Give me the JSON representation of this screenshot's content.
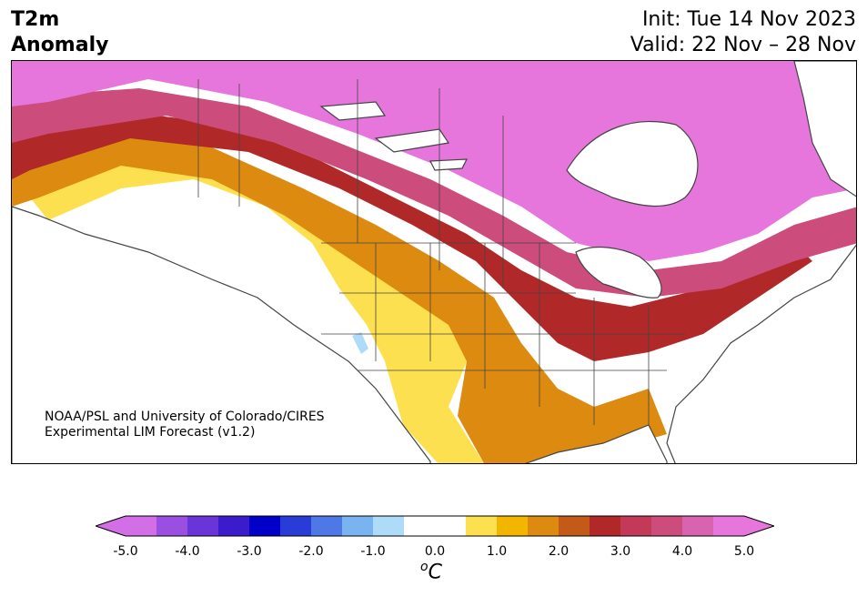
{
  "title": {
    "line1": "T2m",
    "line2": "Anomaly"
  },
  "dates": {
    "init": "Init: Tue 14 Nov 2023",
    "valid": "Valid: 22 Nov – 28 Nov"
  },
  "credit": {
    "line1": "NOAA/PSL and University of Colorado/CIRES",
    "line2": "Experimental LIM Forecast (v1.2)"
  },
  "colorbar": {
    "ticks": [
      "-5.0",
      "-4.0",
      "-3.0",
      "-2.0",
      "-1.0",
      "0.0",
      "1.0",
      "2.0",
      "3.0",
      "4.0",
      "5.0"
    ],
    "unit": "C",
    "unit_prefix": "o",
    "colors": [
      "#d26ee6",
      "#9b4fe0",
      "#6a35d8",
      "#3b1ccc",
      "#0000c8",
      "#2a3cd8",
      "#4d78e6",
      "#7ab4f0",
      "#aedcf8",
      "#ffffff",
      "#ffffff",
      "#fde050",
      "#f2b600",
      "#dc8a10",
      "#c45a18",
      "#b02828",
      "#c23a58",
      "#cc4c7c",
      "#d864b0",
      "#e676dc"
    ],
    "under_color": "#d26ee6",
    "over_color": "#e676dc"
  },
  "map": {
    "region": "North America",
    "variable": "2 m temperature anomaly",
    "ocean_color": "#ffffff",
    "land_outline_color": "#444444"
  }
}
